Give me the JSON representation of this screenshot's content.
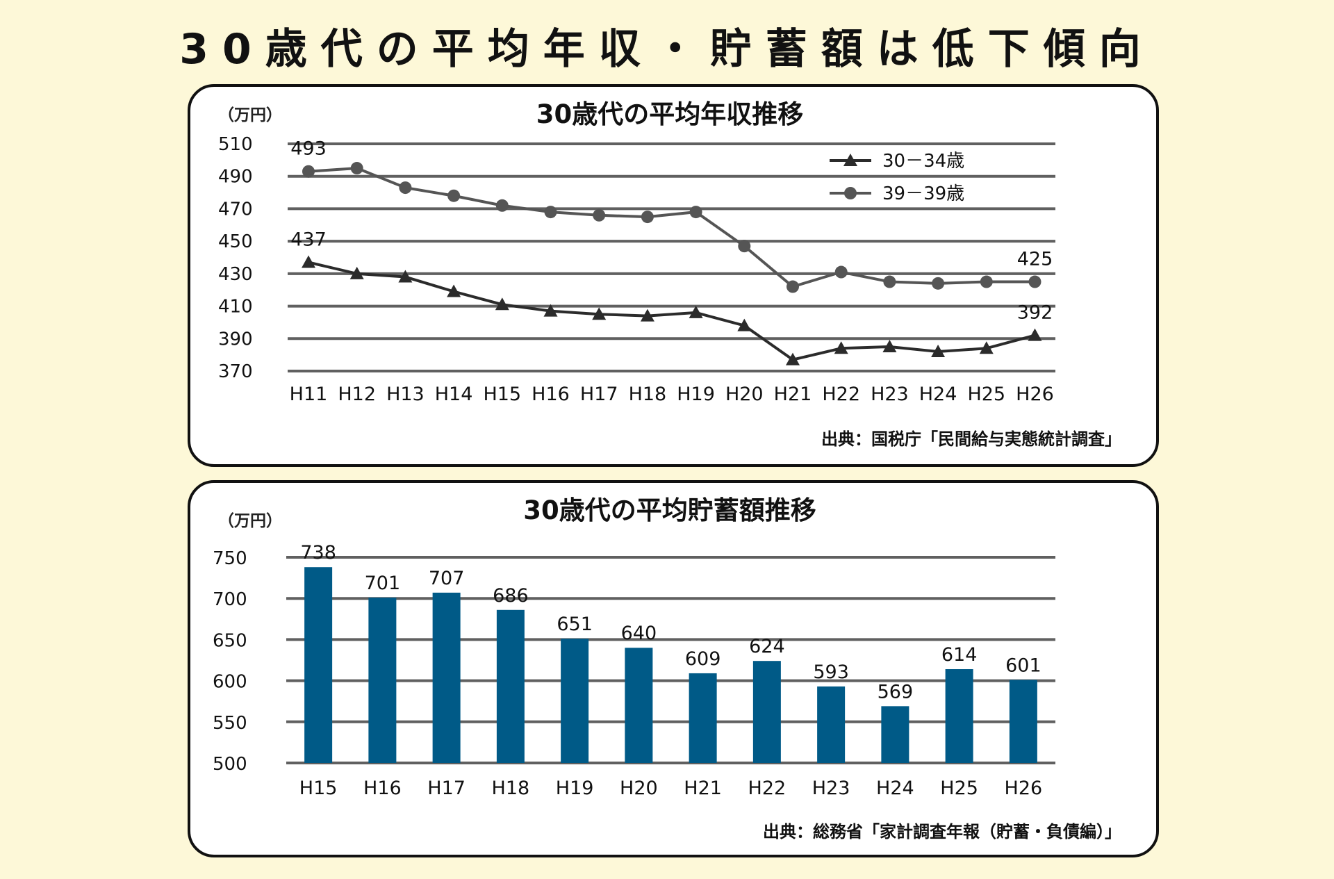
{
  "page": {
    "title": "30歳代の平均年収・貯蓄額は低下傾向"
  },
  "colors": {
    "background": "#fdf8d8",
    "grid": "#606060",
    "series_30_34": "#2b2b2b",
    "series_39_39": "#555555",
    "bars": "#005a87"
  },
  "chart_data": [
    {
      "type": "line",
      "title": "30歳代の平均年収推移",
      "unit_label": "（万円）",
      "source": "出典：国税庁「民間給与実態統計調査」",
      "x": [
        "H11",
        "H12",
        "H13",
        "H14",
        "H15",
        "H16",
        "H17",
        "H18",
        "H19",
        "H20",
        "H21",
        "H22",
        "H23",
        "H24",
        "H25",
        "H26"
      ],
      "ylim": [
        370,
        510
      ],
      "yticks": [
        370,
        390,
        410,
        430,
        450,
        470,
        490,
        510
      ],
      "grid": true,
      "legend_position": "top-right",
      "series": [
        {
          "name": "30－34歳",
          "marker": "triangle",
          "values": [
            437,
            430,
            428,
            419,
            411,
            407,
            405,
            404,
            406,
            398,
            377,
            384,
            385,
            382,
            384,
            392
          ]
        },
        {
          "name": "39－39歳",
          "marker": "circle",
          "values": [
            493,
            495,
            483,
            478,
            472,
            468,
            466,
            465,
            468,
            447,
            422,
            431,
            425,
            424,
            425,
            425
          ]
        }
      ],
      "data_labels": [
        {
          "series": 1,
          "index": 0,
          "text": "493"
        },
        {
          "series": 0,
          "index": 0,
          "text": "437"
        },
        {
          "series": 1,
          "index": 15,
          "text": "425"
        },
        {
          "series": 0,
          "index": 15,
          "text": "392"
        }
      ]
    },
    {
      "type": "bar",
      "title": "30歳代の平均貯蓄額推移",
      "unit_label": "（万円）",
      "source": "出典：総務省「家計調査年報（貯蓄・負債編）」",
      "categories": [
        "H15",
        "H16",
        "H17",
        "H18",
        "H19",
        "H20",
        "H21",
        "H22",
        "H23",
        "H24",
        "H25",
        "H26"
      ],
      "values": [
        738,
        701,
        707,
        686,
        651,
        640,
        609,
        624,
        593,
        569,
        614,
        601
      ],
      "ylim": [
        500,
        750
      ],
      "yticks": [
        500,
        550,
        600,
        650,
        700,
        750
      ],
      "grid": true
    }
  ]
}
